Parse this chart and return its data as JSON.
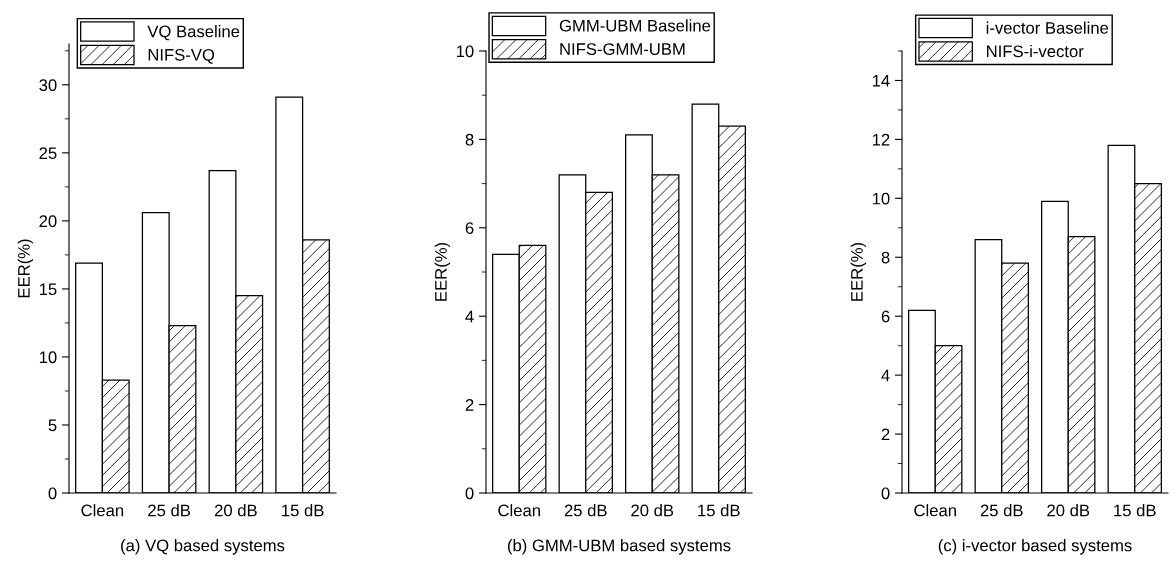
{
  "chart_data": [
    {
      "type": "bar",
      "xlabel": "(a) VQ based systems",
      "ylabel": "EER(%)",
      "categories": [
        "Clean",
        "25 dB",
        "20 dB",
        "15 dB"
      ],
      "series": [
        {
          "name": "VQ Baseline",
          "color": "#ffffff",
          "values": [
            16.9,
            20.6,
            23.7,
            29.1
          ]
        },
        {
          "name": "NIFS-VQ",
          "color": "#000000",
          "values": [
            8.3,
            12.3,
            14.5,
            18.6
          ]
        }
      ],
      "ylim": [
        0,
        33
      ],
      "yticks": [
        0,
        {
          "value": 2.5,
          "label": null
        },
        5,
        {
          "value": 7.5,
          "label": null
        },
        10,
        {
          "value": 12.5,
          "label": null
        },
        15,
        {
          "value": 17.5,
          "label": null
        },
        20,
        {
          "value": 22.5,
          "label": null
        },
        25,
        {
          "value": 27.5,
          "label": null
        },
        30,
        {
          "value": 32.5,
          "label": null
        }
      ],
      "legend": "top left",
      "grid": false
    },
    {
      "type": "bar",
      "xlabel": "(b) GMM-UBM based systems",
      "ylabel": "EER(%)",
      "categories": [
        "Clean",
        "25 dB",
        "20 dB",
        "15 dB"
      ],
      "series": [
        {
          "name": "GMM-UBM Baseline",
          "color": "#ffffff",
          "values": [
            5.4,
            7.2,
            8.1,
            8.8
          ]
        },
        {
          "name": "NIFS-GMM-UBM",
          "color": "#000000",
          "values": [
            5.6,
            6.8,
            7.2,
            8.3
          ]
        }
      ],
      "ylim": [
        0,
        10
      ],
      "yticks": [
        0,
        {
          "value": 1,
          "label": null
        },
        2,
        {
          "value": 3,
          "label": null
        },
        4,
        {
          "value": 5,
          "label": null
        },
        6,
        {
          "value": 7,
          "label": null
        },
        8,
        {
          "value": 9,
          "label": null
        },
        10
      ],
      "legend": "top left",
      "grid": false
    },
    {
      "type": "bar",
      "xlabel": "(c) i-vector based systems",
      "ylabel": "EER(%)",
      "categories": [
        "Clean",
        "25 dB",
        "20 dB",
        "15 dB"
      ],
      "series": [
        {
          "name": "i-vector Baseline",
          "color": "#ffffff",
          "values": [
            6.2,
            8.6,
            9.9,
            11.8
          ]
        },
        {
          "name": "NIFS-i-vector",
          "color": "#000000",
          "values": [
            5.0,
            7.8,
            8.7,
            10.5
          ]
        }
      ],
      "ylim": [
        0,
        15
      ],
      "yticks": [
        0,
        {
          "value": 1,
          "label": null
        },
        2,
        {
          "value": 3,
          "label": null
        },
        4,
        {
          "value": 5,
          "label": null
        },
        6,
        {
          "value": 7,
          "label": null
        },
        8,
        {
          "value": 9,
          "label": null
        },
        10,
        {
          "value": 11,
          "label": null
        },
        12,
        {
          "value": 13,
          "label": null
        },
        14,
        {
          "value": 15,
          "label": null
        }
      ],
      "legend": "top left",
      "grid": false
    }
  ]
}
